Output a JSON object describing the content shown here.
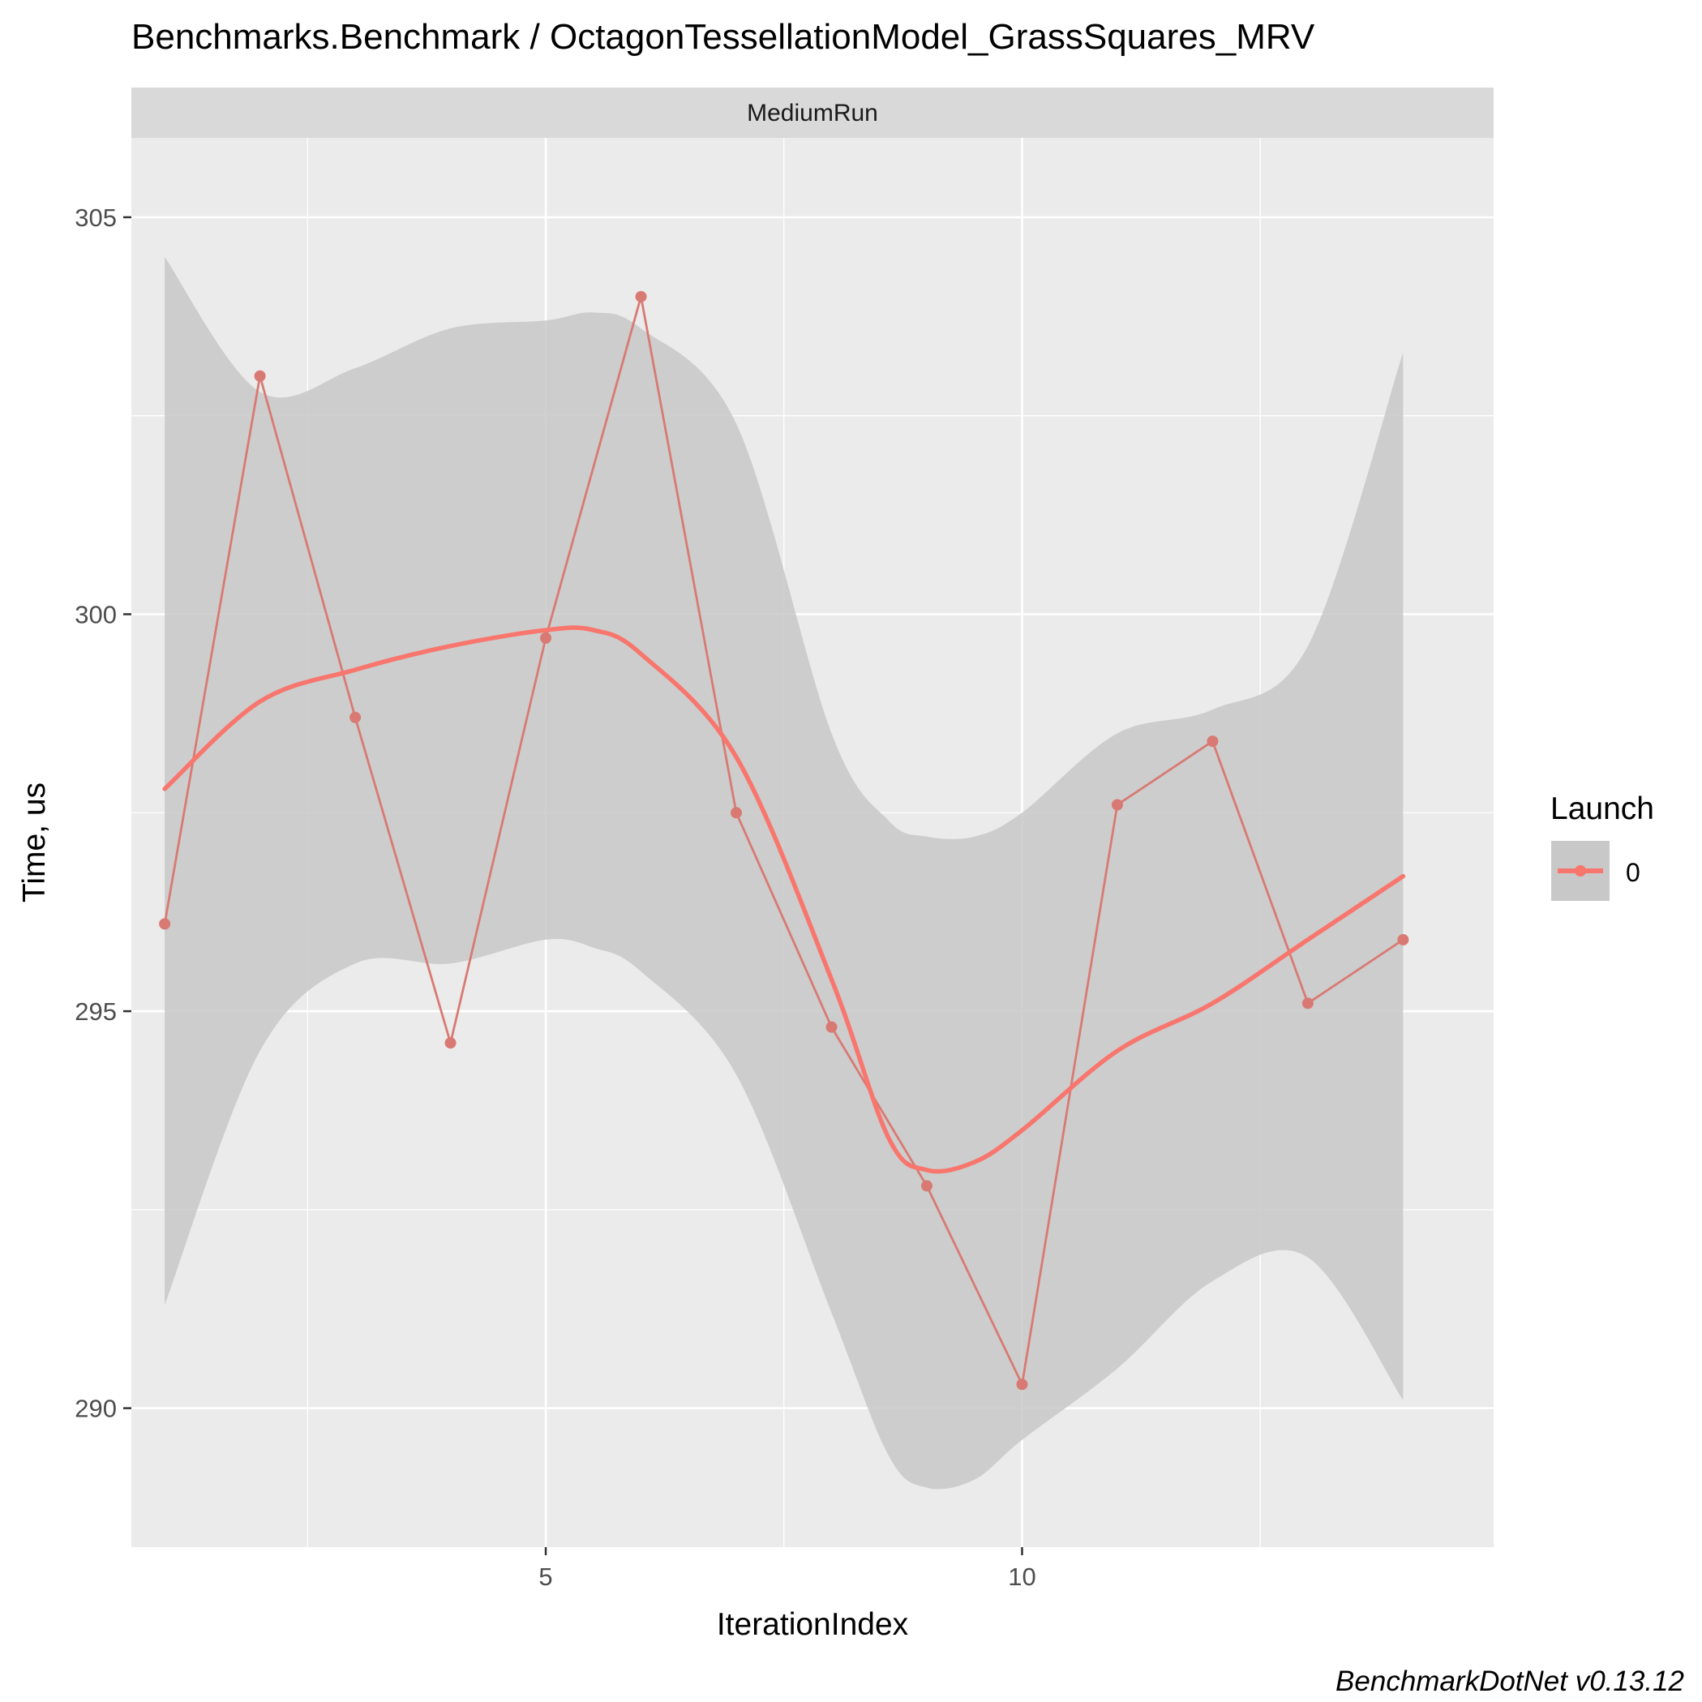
{
  "chart_data": {
    "type": "line",
    "title": "Benchmarks.Benchmark / OctagonTessellationModel_GrassSquares_MRV",
    "facet_label": "MediumRun",
    "xlabel": "IterationIndex",
    "ylabel": "Time, us",
    "xlim": [
      0.65,
      14.95
    ],
    "ylim": [
      288.25,
      306.0
    ],
    "x_ticks": [
      5,
      10
    ],
    "x_tick_labels": [
      "5",
      "10"
    ],
    "y_ticks": [
      290,
      295,
      300,
      305
    ],
    "y_tick_labels": [
      "290",
      "295",
      "300",
      "305"
    ],
    "grid": true,
    "legend": {
      "title": "Launch",
      "position": "right",
      "entries": [
        "0"
      ]
    },
    "series": [
      {
        "name": "0",
        "color": "#F8766D",
        "x": [
          1,
          2,
          3,
          4,
          5,
          6,
          7,
          8,
          9,
          10,
          11,
          12,
          13,
          14
        ],
        "y": [
          296.1,
          303.0,
          298.7,
          294.6,
          299.7,
          304.0,
          297.5,
          294.8,
          292.8,
          290.3,
          297.6,
          298.4,
          295.1,
          295.9
        ]
      }
    ],
    "smooth": {
      "x": [
        1,
        2,
        3,
        4,
        5,
        5.5,
        6,
        7,
        8,
        8.6,
        9,
        9.5,
        10,
        11,
        12,
        13,
        14
      ],
      "y": [
        297.8,
        298.9,
        299.3,
        299.6,
        299.8,
        299.8,
        299.5,
        298.2,
        295.4,
        293.4,
        293.0,
        293.1,
        293.5,
        294.5,
        295.1,
        295.9,
        296.7
      ],
      "ci_upper": [
        304.5,
        302.8,
        303.1,
        303.6,
        303.7,
        303.8,
        303.6,
        302.4,
        298.5,
        297.4,
        297.2,
        297.2,
        297.5,
        298.5,
        298.8,
        299.6,
        303.3
      ],
      "ci_lower": [
        291.3,
        294.5,
        295.6,
        295.6,
        295.9,
        295.8,
        295.5,
        294.2,
        291.2,
        289.4,
        289.0,
        289.1,
        289.6,
        290.5,
        291.6,
        291.9,
        290.1
      ]
    }
  },
  "caption": "BenchmarkDotNet v0.13.12",
  "colors": {
    "panel_bg": "#EBEBEB",
    "strip_bg": "#D9D9D9",
    "grid": "#FFFFFF",
    "ribbon": "#C8C8C8",
    "series": "#F8766D",
    "raw_line": "#D87A73"
  }
}
